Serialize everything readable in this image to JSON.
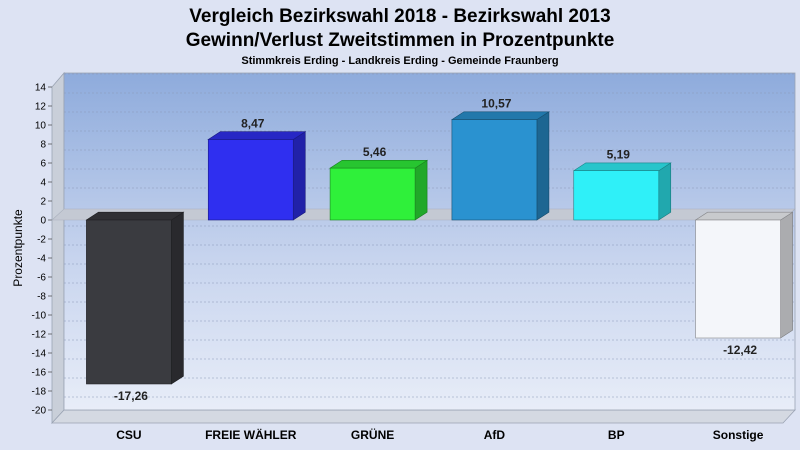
{
  "chart_data": {
    "type": "bar",
    "title": "Vergleich Bezirkswahl 2018 - Bezirkswahl 2013",
    "subtitle": "Gewinn/Verlust Zweitstimmen in Prozentpunkte",
    "subsubtitle": "Stimmkreis Erding - Landkreis Erding - Gemeinde Fraunberg",
    "ylabel": "Prozentpunkte",
    "xlabel": "",
    "ylim": [
      -20,
      14
    ],
    "yticks": [
      14,
      12,
      10,
      8,
      6,
      4,
      2,
      0,
      -2,
      -4,
      -6,
      -8,
      -10,
      -12,
      -14,
      -16,
      -18,
      -20
    ],
    "grid": true,
    "legend": "none",
    "categories": [
      "CSU",
      "FREIE WÄHLER",
      "GRÜNE",
      "AfD",
      "BP",
      "Sonstige"
    ],
    "values": [
      -17.26,
      8.47,
      5.46,
      10.57,
      5.19,
      -12.42
    ],
    "value_labels": [
      "-17,26",
      "8,47",
      "5,46",
      "10,57",
      "5,19",
      "-12,42"
    ],
    "colors": [
      "#3a3b40",
      "#2f2ff0",
      "#2ff03a",
      "#2a92d0",
      "#2ff0f8",
      "#f4f6fa"
    ]
  }
}
